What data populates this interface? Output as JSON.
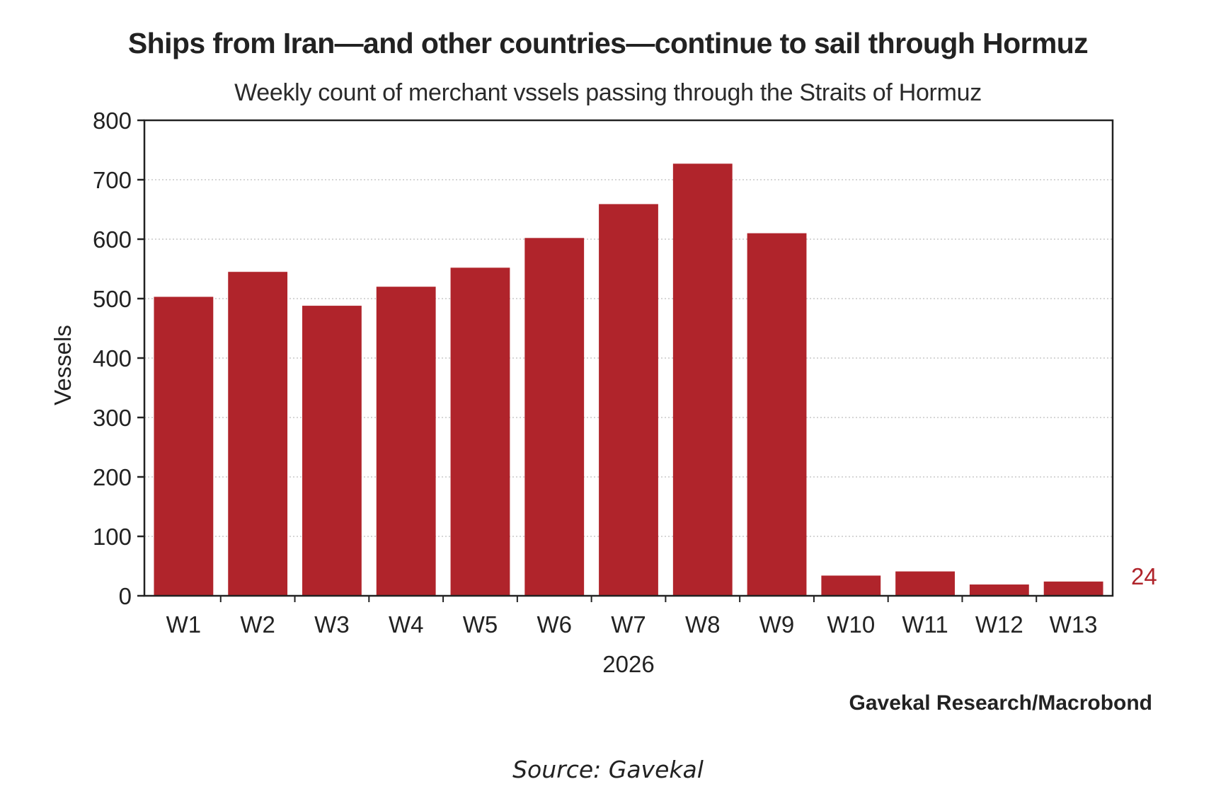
{
  "chart_data": {
    "type": "bar",
    "title": "Ships from Iran—and other countries—continue to sail through Hormuz",
    "subtitle": "Weekly count of merchant vssels passing through the Straits of Hormuz",
    "categories": [
      "W1",
      "W2",
      "W3",
      "W4",
      "W5",
      "W6",
      "W7",
      "W8",
      "W9",
      "W10",
      "W11",
      "W12",
      "W13"
    ],
    "values": [
      503,
      545,
      488,
      520,
      552,
      602,
      659,
      727,
      610,
      34,
      41,
      19,
      24
    ],
    "xlabel": "2026",
    "ylabel": "Vessels",
    "ylim": [
      0,
      800
    ],
    "yticks": [
      "0",
      "100",
      "200",
      "300",
      "400",
      "500",
      "600",
      "700",
      "800"
    ],
    "grid": true,
    "bar_color": "#b0242b",
    "end_label": "24",
    "end_label_color": "#b0242b"
  },
  "credit": "Gavekal Research/Macrobond",
  "source": "Source: Gavekal"
}
